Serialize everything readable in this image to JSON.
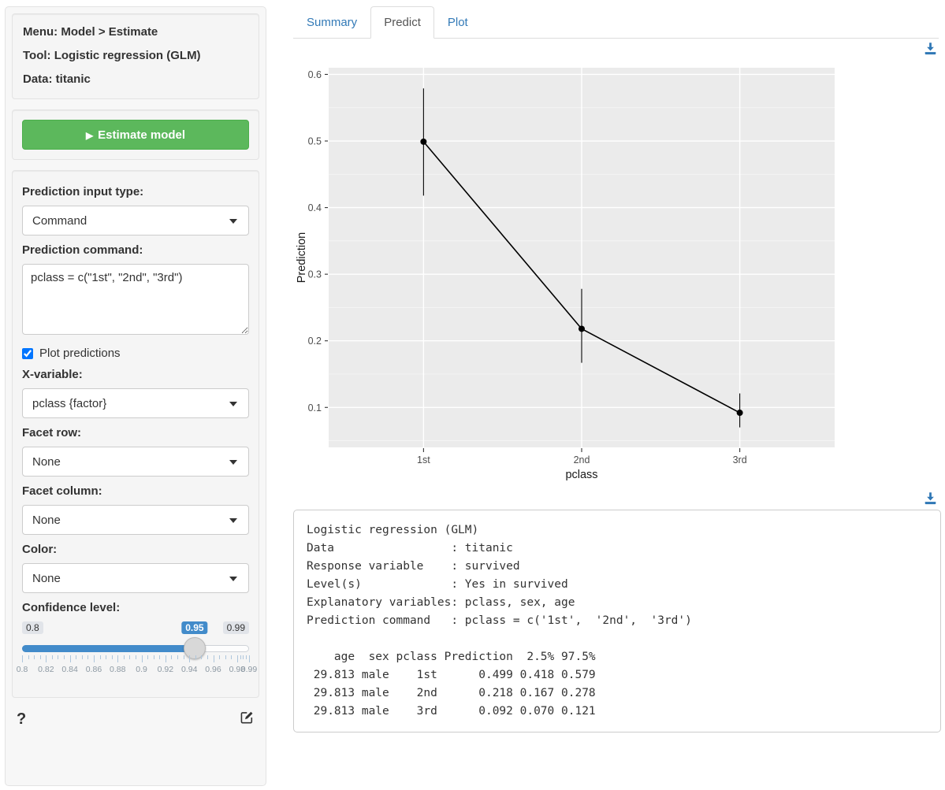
{
  "sidebar": {
    "summary": {
      "menu": "Menu: Model > Estimate",
      "tool": "Tool: Logistic regression (GLM)",
      "data": "Data: titanic"
    },
    "estimate_button": "Estimate model",
    "fields": {
      "input_type_label": "Prediction input type:",
      "input_type_value": "Command",
      "command_label": "Prediction command:",
      "command_value": "pclass = c(\"1st\", \"2nd\", \"3rd\")",
      "plot_predictions_label": "Plot predictions",
      "xvar_label": "X-variable:",
      "xvar_value": "pclass {factor}",
      "facet_row_label": "Facet row:",
      "facet_row_value": "None",
      "facet_col_label": "Facet column:",
      "facet_col_value": "None",
      "color_label": "Color:",
      "color_value": "None",
      "conf_label": "Confidence level:"
    },
    "slider": {
      "min_label": "0.8",
      "value_label": "0.95",
      "max_label": "0.99",
      "value_pct": 76,
      "grid_labels": [
        {
          "text": "0.8",
          "pct": 0
        },
        {
          "text": "0.82",
          "pct": 10.53
        },
        {
          "text": "0.84",
          "pct": 21.05
        },
        {
          "text": "0.86",
          "pct": 31.58
        },
        {
          "text": "0.88",
          "pct": 42.11
        },
        {
          "text": "0.9",
          "pct": 52.63
        },
        {
          "text": "0.92",
          "pct": 63.16
        },
        {
          "text": "0.94",
          "pct": 73.68
        },
        {
          "text": "0.96",
          "pct": 84.21
        },
        {
          "text": "0.98",
          "pct": 94.74
        },
        {
          "text": "0.99",
          "pct": 100
        }
      ]
    },
    "help_label": "?"
  },
  "tabs": [
    {
      "label": "Summary",
      "active": false
    },
    {
      "label": "Predict",
      "active": true
    },
    {
      "label": "Plot",
      "active": false
    }
  ],
  "chart_data": {
    "type": "line",
    "title": "",
    "xlabel": "pclass",
    "ylabel": "Prediction",
    "categories": [
      "1st",
      "2nd",
      "3rd"
    ],
    "series": [
      {
        "name": "Prediction",
        "values": [
          0.499,
          0.218,
          0.092
        ],
        "ci_low": [
          0.418,
          0.167,
          0.07
        ],
        "ci_high": [
          0.579,
          0.278,
          0.121
        ]
      }
    ],
    "ylim": [
      0.04,
      0.61
    ],
    "yticks": [
      0.1,
      0.2,
      0.3,
      0.4,
      0.5,
      0.6
    ],
    "yticks_minor": [
      0.05,
      0.15,
      0.25,
      0.35,
      0.45,
      0.55
    ],
    "grid": true,
    "legend": "none",
    "panel_color": "#ebebeb",
    "point_color": "#000000"
  },
  "colors": {
    "accent_blue": "#337ab7",
    "slider_blue": "#428bca",
    "button_green": "#5cb85c"
  },
  "output": {
    "lines": [
      "Logistic regression (GLM)",
      "Data                 : titanic",
      "Response variable    : survived",
      "Level(s)             : Yes in survived",
      "Explanatory variables: pclass, sex, age",
      "Prediction command   : pclass = c('1st',  '2nd',  '3rd')",
      "",
      "    age  sex pclass Prediction  2.5% 97.5%",
      " 29.813 male    1st      0.499 0.418 0.579",
      " 29.813 male    2nd      0.218 0.167 0.278",
      " 29.813 male    3rd      0.092 0.070 0.121"
    ]
  }
}
